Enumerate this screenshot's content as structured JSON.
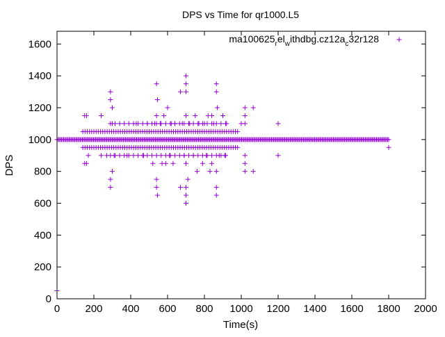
{
  "chart_data": {
    "type": "scatter",
    "title": "DPS vs Time for qr1000.L5",
    "xlabel": "Time(s)",
    "ylabel": "DPS",
    "xlim": [
      0,
      2000
    ],
    "ylim": [
      0,
      1680
    ],
    "x_ticks": [
      0,
      200,
      400,
      600,
      800,
      1000,
      1200,
      1400,
      1600,
      1800,
      2000
    ],
    "y_ticks": [
      0,
      200,
      400,
      600,
      800,
      1000,
      1200,
      1400,
      1600
    ],
    "grid": false,
    "legend_position": "top-right",
    "marker": "plus",
    "series": [
      {
        "name": "ma100625",
        "name_sub1": "r",
        "name_mid1": "el",
        "name_sub2": "w",
        "name_mid2": "ithdbg.cz12a",
        "name_sub3": "c",
        "name_end": "32r128",
        "color": "#9400d3",
        "points": [
          {
            "x": 0,
            "y": 50
          },
          {
            "x": 150,
            "y": 1150
          },
          {
            "x": 160,
            "y": 1150
          },
          {
            "x": 240,
            "y": 1150
          },
          {
            "x": 150,
            "y": 850
          },
          {
            "x": 160,
            "y": 850
          },
          {
            "x": 170,
            "y": 900
          },
          {
            "x": 240,
            "y": 900
          },
          {
            "x": 290,
            "y": 1300
          },
          {
            "x": 290,
            "y": 1250
          },
          {
            "x": 300,
            "y": 1200
          },
          {
            "x": 300,
            "y": 1100
          },
          {
            "x": 300,
            "y": 800
          },
          {
            "x": 290,
            "y": 750
          },
          {
            "x": 290,
            "y": 700
          },
          {
            "x": 270,
            "y": 900
          },
          {
            "x": 310,
            "y": 900
          },
          {
            "x": 380,
            "y": 900
          },
          {
            "x": 430,
            "y": 1100
          },
          {
            "x": 470,
            "y": 900
          },
          {
            "x": 490,
            "y": 1100
          },
          {
            "x": 520,
            "y": 850
          },
          {
            "x": 530,
            "y": 1100
          },
          {
            "x": 540,
            "y": 1350
          },
          {
            "x": 545,
            "y": 1250
          },
          {
            "x": 540,
            "y": 1150
          },
          {
            "x": 560,
            "y": 1100
          },
          {
            "x": 540,
            "y": 750
          },
          {
            "x": 540,
            "y": 700
          },
          {
            "x": 545,
            "y": 650
          },
          {
            "x": 570,
            "y": 850
          },
          {
            "x": 580,
            "y": 1150
          },
          {
            "x": 590,
            "y": 850
          },
          {
            "x": 600,
            "y": 1200
          },
          {
            "x": 610,
            "y": 900
          },
          {
            "x": 620,
            "y": 1100
          },
          {
            "x": 630,
            "y": 850
          },
          {
            "x": 640,
            "y": 1100
          },
          {
            "x": 670,
            "y": 1300
          },
          {
            "x": 670,
            "y": 700
          },
          {
            "x": 680,
            "y": 1100
          },
          {
            "x": 690,
            "y": 900
          },
          {
            "x": 700,
            "y": 1400
          },
          {
            "x": 700,
            "y": 1350
          },
          {
            "x": 700,
            "y": 1300
          },
          {
            "x": 700,
            "y": 1150
          },
          {
            "x": 700,
            "y": 850
          },
          {
            "x": 710,
            "y": 750
          },
          {
            "x": 700,
            "y": 700
          },
          {
            "x": 700,
            "y": 650
          },
          {
            "x": 700,
            "y": 600
          },
          {
            "x": 720,
            "y": 1100
          },
          {
            "x": 740,
            "y": 900
          },
          {
            "x": 750,
            "y": 1150
          },
          {
            "x": 760,
            "y": 800
          },
          {
            "x": 770,
            "y": 1100
          },
          {
            "x": 790,
            "y": 850
          },
          {
            "x": 800,
            "y": 1100
          },
          {
            "x": 810,
            "y": 900
          },
          {
            "x": 820,
            "y": 1150
          },
          {
            "x": 830,
            "y": 800
          },
          {
            "x": 840,
            "y": 1150
          },
          {
            "x": 840,
            "y": 850
          },
          {
            "x": 850,
            "y": 1100
          },
          {
            "x": 865,
            "y": 1350
          },
          {
            "x": 865,
            "y": 1300
          },
          {
            "x": 870,
            "y": 1200
          },
          {
            "x": 865,
            "y": 800
          },
          {
            "x": 865,
            "y": 700
          },
          {
            "x": 865,
            "y": 650
          },
          {
            "x": 880,
            "y": 900
          },
          {
            "x": 900,
            "y": 1150
          },
          {
            "x": 910,
            "y": 900
          },
          {
            "x": 920,
            "y": 1100
          },
          {
            "x": 980,
            "y": 1050
          },
          {
            "x": 1000,
            "y": 1100
          },
          {
            "x": 1020,
            "y": 1200
          },
          {
            "x": 1020,
            "y": 1150
          },
          {
            "x": 1020,
            "y": 1100
          },
          {
            "x": 1020,
            "y": 900
          },
          {
            "x": 1020,
            "y": 850
          },
          {
            "x": 1020,
            "y": 800
          },
          {
            "x": 1065,
            "y": 1200
          },
          {
            "x": 1065,
            "y": 800
          },
          {
            "x": 1200,
            "y": 1100
          },
          {
            "x": 1200,
            "y": 900
          },
          {
            "x": 1800,
            "y": 950
          }
        ],
        "bands": [
          {
            "y": 1000,
            "x_from": 0,
            "x_to": 1800,
            "step": 6
          },
          {
            "y": 1050,
            "x_from": 140,
            "x_to": 970,
            "step": 12
          },
          {
            "y": 950,
            "x_from": 140,
            "x_to": 990,
            "step": 12
          },
          {
            "y": 1100,
            "x_from": 290,
            "x_to": 920,
            "step": 25
          },
          {
            "y": 900,
            "x_from": 290,
            "x_to": 920,
            "step": 25
          }
        ]
      }
    ]
  }
}
